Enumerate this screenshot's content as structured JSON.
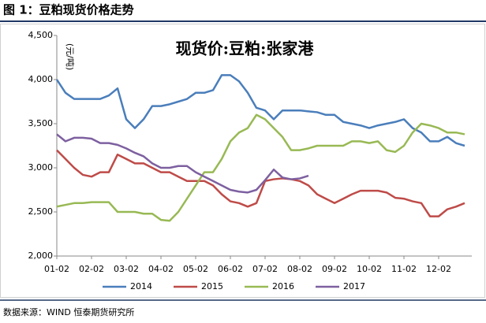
{
  "header": "图 1：豆粕现货价格走势",
  "source": "数据来源：WIND 恒泰期货研究所",
  "chart_data": {
    "type": "line",
    "title": "现货价:豆粕:张家港",
    "y_label": "(元/吨)",
    "categories": [
      "01-02",
      null,
      null,
      null,
      "02-02",
      null,
      null,
      null,
      "03-02",
      null,
      null,
      null,
      "04-02",
      null,
      null,
      null,
      "05-02",
      null,
      null,
      null,
      "06-02",
      null,
      null,
      null,
      "07-02",
      null,
      null,
      null,
      "08-02",
      null,
      null,
      null,
      "09-02",
      null,
      null,
      null,
      "10-02",
      null,
      null,
      null,
      "11-02",
      null,
      null,
      null,
      "12-02",
      null,
      null,
      null
    ],
    "series": [
      {
        "name": "2014",
        "color": "#4a7ebb",
        "values": [
          4000,
          3850,
          3780,
          3780,
          3780,
          3780,
          3820,
          3900,
          3550,
          3450,
          3550,
          3700,
          3700,
          3720,
          3750,
          3780,
          3850,
          3850,
          3880,
          4050,
          4050,
          3980,
          3850,
          3680,
          3650,
          3550,
          3650,
          3650,
          3650,
          3640,
          3630,
          3600,
          3600,
          3520,
          3500,
          3480,
          3450,
          3480,
          3500,
          3520,
          3550,
          3450,
          3400,
          3300,
          3300,
          3350,
          3280,
          3250
        ]
      },
      {
        "name": "2015",
        "color": "#be4b48",
        "values": [
          3200,
          3100,
          3000,
          2920,
          2900,
          2950,
          2950,
          3150,
          3100,
          3050,
          3050,
          3000,
          2950,
          2950,
          2900,
          2850,
          2850,
          2850,
          2800,
          2700,
          2620,
          2600,
          2560,
          2600,
          2850,
          2870,
          2880,
          2870,
          2850,
          2800,
          2700,
          2650,
          2600,
          2650,
          2700,
          2740,
          2740,
          2740,
          2720,
          2660,
          2650,
          2620,
          2600,
          2450,
          2450,
          2530,
          2560,
          2600
        ]
      },
      {
        "name": "2016",
        "color": "#98b954",
        "values": [
          2560,
          2580,
          2600,
          2600,
          2610,
          2610,
          2610,
          2500,
          2500,
          2500,
          2480,
          2480,
          2410,
          2400,
          2500,
          2650,
          2800,
          2950,
          2950,
          3100,
          3300,
          3400,
          3450,
          3600,
          3550,
          3450,
          3350,
          3200,
          3200,
          3220,
          3250,
          3250,
          3250,
          3250,
          3300,
          3300,
          3280,
          3300,
          3200,
          3180,
          3250,
          3400,
          3500,
          3480,
          3450,
          3400,
          3400,
          3380
        ]
      },
      {
        "name": "2017",
        "color": "#7d60a0",
        "values": [
          3380,
          3300,
          3340,
          3340,
          3330,
          3280,
          3280,
          3260,
          3220,
          3170,
          3130,
          3050,
          3000,
          3000,
          3020,
          3020,
          2950,
          2900,
          2850,
          2800,
          2750,
          2730,
          2720,
          2750,
          2860,
          2980,
          2890,
          2870,
          2880,
          2910,
          null,
          null,
          null,
          null,
          null,
          null,
          null,
          null,
          null,
          null,
          null,
          null,
          null,
          null,
          null,
          null,
          null,
          null
        ]
      }
    ],
    "ylim": [
      2000,
      4500
    ],
    "yticks": [
      {
        "value": 2000,
        "label": "2,000"
      },
      {
        "value": 2500,
        "label": "2,500"
      },
      {
        "value": 3000,
        "label": "3,000"
      },
      {
        "value": 3500,
        "label": "3,500"
      },
      {
        "value": 4000,
        "label": "4,000"
      },
      {
        "value": 4500,
        "label": "4,500"
      }
    ],
    "legend": "bottom"
  }
}
